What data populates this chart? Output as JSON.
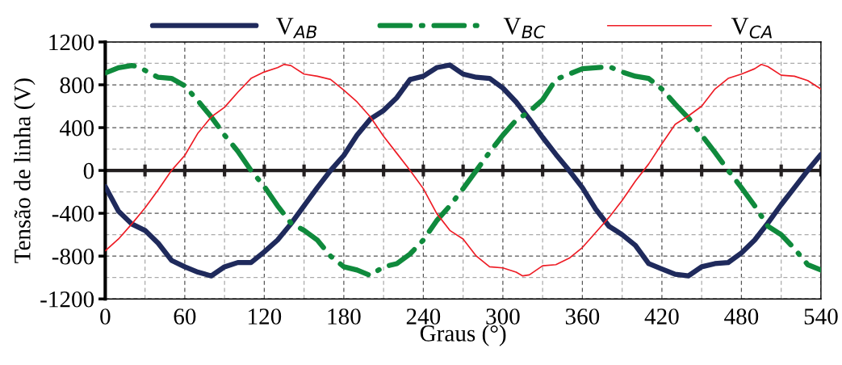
{
  "chart_data": {
    "type": "line",
    "xlabel": "Graus (°)",
    "ylabel": "Tensão de linha (V)",
    "xlim": [
      0,
      540
    ],
    "xticks": [
      0,
      60,
      120,
      180,
      240,
      300,
      360,
      420,
      480,
      540
    ],
    "ylim": [
      -1200,
      1200
    ],
    "yticks": [
      -1200,
      -800,
      -400,
      0,
      400,
      800,
      1200
    ],
    "grid": true,
    "legend": "top",
    "ref_lines": [
      {
        "axis": "y",
        "value": 0,
        "color": "#231f20"
      }
    ],
    "series": [
      {
        "name": "V$_{AB}$",
        "color": "#1f2a5c",
        "line_style": "solid",
        "x": [
          0,
          10,
          20,
          30,
          40,
          50,
          60,
          70,
          80,
          90,
          100,
          110,
          120,
          130,
          140,
          150,
          160,
          170,
          180,
          190,
          200,
          210,
          220,
          230,
          240,
          250,
          260,
          270,
          280,
          290,
          300,
          310,
          320,
          330,
          340,
          350,
          360,
          370,
          380,
          390,
          400,
          410,
          420,
          430,
          440,
          450,
          460,
          470,
          480,
          490,
          500,
          510,
          520,
          530,
          540
        ],
        "values": [
          -150,
          -380,
          -500,
          -560,
          -680,
          -840,
          -900,
          -950,
          -985,
          -900,
          -860,
          -860,
          -760,
          -650,
          -500,
          -330,
          -160,
          0,
          140,
          330,
          480,
          560,
          680,
          850,
          880,
          960,
          985,
          900,
          870,
          860,
          770,
          640,
          480,
          310,
          150,
          0,
          -160,
          -360,
          -520,
          -600,
          -700,
          -870,
          -920,
          -970,
          -985,
          -900,
          -870,
          -860,
          -770,
          -650,
          -490,
          -320,
          -160,
          0,
          150
        ]
      },
      {
        "name": "V$_{BC}$",
        "color": "#0f8a3c",
        "line_style": "dashed",
        "x": [
          0,
          10,
          20,
          25,
          35,
          40,
          50,
          60,
          70,
          80,
          90,
          100,
          110,
          120,
          130,
          140,
          150,
          160,
          170,
          180,
          190,
          200,
          210,
          220,
          230,
          240,
          250,
          260,
          270,
          280,
          290,
          300,
          310,
          320,
          330,
          340,
          350,
          360,
          370,
          380,
          390,
          400,
          410,
          420,
          430,
          440,
          450,
          460,
          470,
          480,
          490,
          500,
          510,
          520,
          530,
          540
        ],
        "values": [
          910,
          960,
          980,
          970,
          900,
          870,
          860,
          790,
          650,
          500,
          330,
          180,
          0,
          -150,
          -330,
          -490,
          -560,
          -650,
          -800,
          -900,
          -930,
          -980,
          -900,
          -870,
          -780,
          -650,
          -470,
          -330,
          -170,
          0,
          170,
          330,
          470,
          550,
          660,
          850,
          900,
          950,
          960,
          970,
          920,
          880,
          860,
          760,
          620,
          490,
          330,
          170,
          0,
          -160,
          -330,
          -520,
          -600,
          -730,
          -880,
          -930
        ]
      },
      {
        "name": "V$_{CA}$",
        "color": "#ee1c25",
        "line_style": "solid",
        "x": [
          0,
          10,
          20,
          30,
          40,
          50,
          60,
          70,
          80,
          90,
          100,
          110,
          120,
          130,
          135,
          140,
          150,
          160,
          170,
          180,
          190,
          200,
          210,
          220,
          230,
          240,
          250,
          260,
          270,
          280,
          290,
          300,
          310,
          315,
          320,
          330,
          340,
          350,
          360,
          370,
          380,
          390,
          400,
          410,
          420,
          430,
          440,
          450,
          460,
          470,
          480,
          490,
          495,
          500,
          510,
          520,
          530,
          540
        ],
        "values": [
          -750,
          -640,
          -500,
          -350,
          -180,
          0,
          140,
          350,
          500,
          590,
          730,
          860,
          920,
          960,
          990,
          980,
          900,
          880,
          850,
          750,
          640,
          500,
          320,
          160,
          0,
          -170,
          -400,
          -560,
          -640,
          -800,
          -900,
          -910,
          -950,
          -985,
          -975,
          -890,
          -880,
          -820,
          -720,
          -580,
          -440,
          -280,
          -100,
          60,
          250,
          430,
          510,
          600,
          760,
          860,
          900,
          950,
          990,
          970,
          890,
          880,
          840,
          760
        ]
      }
    ]
  }
}
